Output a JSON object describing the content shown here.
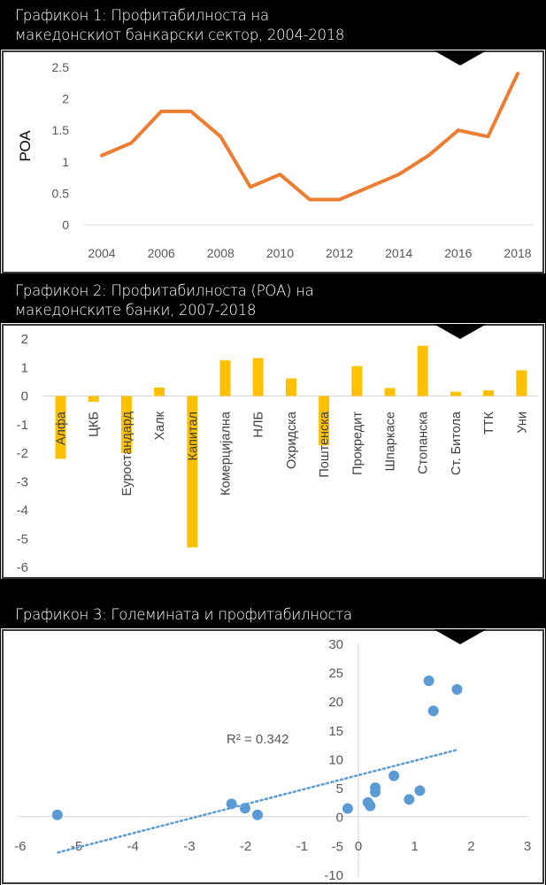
{
  "headers": [
    {
      "line1": "Графикон 1: Профитабилноста на",
      "line2": "македонскиот банкарски сектор, 2004-2018"
    },
    {
      "line1": "Графикон 2: Профитабилноста (РОА) на",
      "line2": "македонските банки, 2007-2018"
    },
    {
      "line1": "Графикон 3: Големината и профитабилноста",
      "line2": ""
    }
  ],
  "colors": {
    "line": "#ED7D31",
    "bar": "#FFC000",
    "scatter": "#5B9BD5",
    "axis": "#D9D9D9",
    "text": "#595959"
  },
  "chart_data": [
    {
      "type": "line",
      "title": "Графикон 1: Профитабилноста на македонскиот банкарски сектор, 2004-2018",
      "xlabel": "",
      "ylabel": "РОА",
      "x": [
        2004,
        2005,
        2006,
        2007,
        2008,
        2009,
        2010,
        2011,
        2012,
        2013,
        2014,
        2015,
        2016,
        2017,
        2018
      ],
      "values": [
        1.1,
        1.3,
        1.8,
        1.8,
        1.4,
        0.6,
        0.8,
        0.4,
        0.4,
        0.6,
        0.8,
        1.1,
        1.5,
        1.4,
        2.4
      ],
      "xticks": [
        "2004",
        "2006",
        "2008",
        "2010",
        "2012",
        "2014",
        "2016",
        "2018"
      ],
      "yticks": [
        "0",
        "0.5",
        "1",
        "1.5",
        "2",
        "2.5"
      ],
      "ylim": [
        0,
        2.5
      ],
      "xlim": [
        2004,
        2018
      ],
      "grid": false
    },
    {
      "type": "bar",
      "title": "Графикон 2: Профитабилноста (РОА) на македонските банки, 2007-2018",
      "categories": [
        "Алфа",
        "ЦКБ",
        "Еуростандард",
        "Халк",
        "Капитал",
        "Комерцијална",
        "НЛБ",
        "Охридска",
        "Поштенска",
        "Прокредит",
        "Шпаркасе",
        "Стопанска",
        "Ст. Битола",
        "ТТК",
        "Уни"
      ],
      "values": [
        -2.2,
        -0.2,
        -2.0,
        0.3,
        -5.3,
        1.25,
        1.33,
        0.62,
        -1.73,
        1.05,
        0.28,
        1.76,
        0.15,
        0.2,
        0.9
      ],
      "yticks": [
        "2",
        "1",
        "0",
        "-1",
        "-2",
        "-3",
        "-4",
        "-5",
        "-6"
      ],
      "ylim": [
        -6,
        2
      ],
      "xlabel": "",
      "ylabel": "",
      "grid": false
    },
    {
      "type": "scatter",
      "title": "Графикон 3: Големината и профитабилноста",
      "points": [
        {
          "x": -5.34,
          "y": 0.3
        },
        {
          "x": -2.25,
          "y": 2.2
        },
        {
          "x": -2.01,
          "y": 1.44
        },
        {
          "x": -1.79,
          "y": 0.3
        },
        {
          "x": -0.19,
          "y": 1.4
        },
        {
          "x": 0.17,
          "y": 2.45
        },
        {
          "x": 0.21,
          "y": 1.84
        },
        {
          "x": 0.3,
          "y": 5.0
        },
        {
          "x": 0.3,
          "y": 4.24
        },
        {
          "x": 0.63,
          "y": 7.05
        },
        {
          "x": 0.9,
          "y": 2.97
        },
        {
          "x": 1.09,
          "y": 4.5
        },
        {
          "x": 1.25,
          "y": 23.5
        },
        {
          "x": 1.33,
          "y": 18.3
        },
        {
          "x": 1.75,
          "y": 22.0
        }
      ],
      "trendline": {
        "type": "linear",
        "style": "dotted",
        "x_start": -5.33,
        "x_end": 1.73,
        "slope": 2.51,
        "intercept": 7.16,
        "label": "R² = 0.342"
      },
      "xticks": [
        "-6",
        "-5",
        "-4",
        "-3",
        "-2",
        "-1",
        "0",
        "1",
        "2",
        "3"
      ],
      "yticks": [
        "30",
        "25",
        "20",
        "15",
        "10",
        "5",
        "0",
        "-5",
        "-10"
      ],
      "xlim": [
        -6,
        3
      ],
      "ylim": [
        -10,
        30
      ],
      "xlabel": "",
      "ylabel": "",
      "grid": false
    }
  ]
}
